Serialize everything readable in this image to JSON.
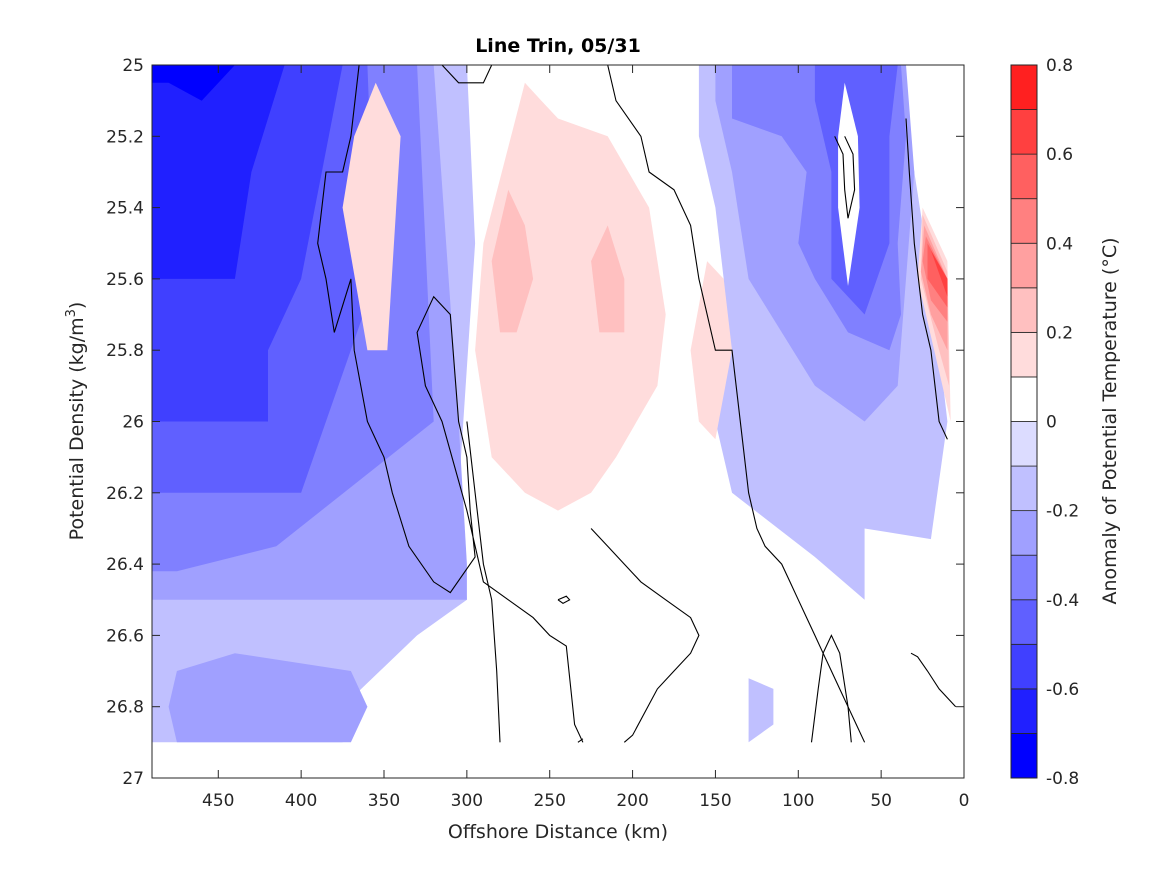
{
  "chart_data": {
    "type": "heatmap",
    "title": "Line Trin, 05/31",
    "xlabel": "Offshore Distance (km)",
    "ylabel": "Potential Density (kg/m",
    "ylabel_sup": "3",
    "ylabel_close": ")",
    "xlim": [
      490,
      0
    ],
    "ylim": [
      25,
      27
    ],
    "x_reversed": true,
    "y_reversed": true,
    "xticks": [
      450,
      400,
      350,
      300,
      250,
      200,
      150,
      100,
      50,
      0
    ],
    "yticks": [
      25,
      25.2,
      25.4,
      25.6,
      25.8,
      26,
      26.2,
      26.4,
      26.6,
      26.8,
      27
    ],
    "grid": false,
    "colorbar": {
      "label": "Anomaly of Potential Temperature (°C)",
      "min": -0.8,
      "max": 0.8,
      "levels": [
        -0.8,
        -0.7,
        -0.6,
        -0.5,
        -0.4,
        -0.3,
        -0.2,
        -0.1,
        0,
        0.1,
        0.2,
        0.3,
        0.4,
        0.5,
        0.6,
        0.7,
        0.8
      ],
      "ticks": [
        0.8,
        0.6,
        0.4,
        0.2,
        0,
        -0.2,
        -0.4,
        -0.6,
        -0.8
      ],
      "colors": [
        "#0000ff",
        "#2020ff",
        "#4040ff",
        "#6060ff",
        "#8080ff",
        "#a0a0ff",
        "#c0c0ff",
        "#dcdcff",
        "#ffffff",
        "#ffdcdc",
        "#ffc0c0",
        "#ffa0a0",
        "#ff8080",
        "#ff6060",
        "#ff4040",
        "#ff2020"
      ]
    },
    "regions": [
      {
        "v": -0.2,
        "pts": [
          [
            490,
            25
          ],
          [
            300,
            25
          ],
          [
            295,
            25.5
          ],
          [
            305,
            26.2
          ],
          [
            300,
            26.5
          ],
          [
            330,
            26.6
          ],
          [
            375,
            26.8
          ],
          [
            375,
            26.9
          ],
          [
            490,
            26.9
          ]
        ]
      },
      {
        "v": -0.3,
        "pts": [
          [
            490,
            25
          ],
          [
            320,
            25
          ],
          [
            305,
            26
          ],
          [
            300,
            26.4
          ],
          [
            300,
            26.5
          ],
          [
            490,
            26.5
          ]
        ]
      },
      {
        "v": -0.4,
        "pts": [
          [
            490,
            25
          ],
          [
            330,
            25
          ],
          [
            320,
            26
          ],
          [
            415,
            26.35
          ],
          [
            475,
            26.42
          ],
          [
            490,
            26.42
          ]
        ]
      },
      {
        "v": -0.5,
        "pts": [
          [
            490,
            25
          ],
          [
            360,
            25
          ],
          [
            355,
            25.6
          ],
          [
            400,
            26.2
          ],
          [
            470,
            26.2
          ],
          [
            490,
            26.2
          ]
        ]
      },
      {
        "v": -0.6,
        "pts": [
          [
            490,
            25
          ],
          [
            375,
            25
          ],
          [
            400,
            25.6
          ],
          [
            420,
            25.8
          ],
          [
            420,
            26
          ],
          [
            470,
            26
          ],
          [
            490,
            26
          ]
        ]
      },
      {
        "v": -0.7,
        "pts": [
          [
            490,
            25
          ],
          [
            410,
            25
          ],
          [
            430,
            25.3
          ],
          [
            440,
            25.6
          ],
          [
            490,
            25.6
          ]
        ]
      },
      {
        "v": -0.8,
        "pts": [
          [
            490,
            25
          ],
          [
            440,
            25
          ],
          [
            460,
            25.1
          ],
          [
            480,
            25.05
          ],
          [
            490,
            25.05
          ]
        ]
      },
      {
        "v": -0.3,
        "pts": [
          [
            475,
            26.7
          ],
          [
            440,
            26.65
          ],
          [
            370,
            26.7
          ],
          [
            360,
            26.8
          ],
          [
            370,
            26.9
          ],
          [
            475,
            26.9
          ],
          [
            480,
            26.8
          ]
        ]
      },
      {
        "v": -0.2,
        "pts": [
          [
            130,
            26.72
          ],
          [
            115,
            26.75
          ],
          [
            115,
            26.85
          ],
          [
            130,
            26.9
          ],
          [
            130,
            26.72
          ]
        ]
      },
      {
        "v": -0.2,
        "pts": [
          [
            160,
            25
          ],
          [
            40,
            25
          ],
          [
            20,
            25.6
          ],
          [
            10,
            26
          ],
          [
            20,
            26.33
          ],
          [
            60,
            26.3
          ],
          [
            60,
            26.5
          ],
          [
            90,
            26.38
          ],
          [
            140,
            26.2
          ],
          [
            150,
            26
          ],
          [
            145,
            25.6
          ],
          [
            150,
            25.4
          ],
          [
            160,
            25.2
          ]
        ]
      },
      {
        "v": -0.3,
        "pts": [
          [
            150,
            25
          ],
          [
            35,
            25
          ],
          [
            30,
            25.3
          ],
          [
            35,
            25.6
          ],
          [
            40,
            25.9
          ],
          [
            60,
            26
          ],
          [
            90,
            25.9
          ],
          [
            130,
            25.6
          ],
          [
            140,
            25.3
          ],
          [
            150,
            25.1
          ]
        ]
      },
      {
        "v": -0.4,
        "pts": [
          [
            140,
            25
          ],
          [
            38,
            25
          ],
          [
            35,
            25.2
          ],
          [
            40,
            25.5
          ],
          [
            38,
            25.7
          ],
          [
            45,
            25.8
          ],
          [
            70,
            25.75
          ],
          [
            90,
            25.6
          ],
          [
            100,
            25.5
          ],
          [
            95,
            25.3
          ],
          [
            110,
            25.2
          ],
          [
            140,
            25.15
          ]
        ]
      },
      {
        "v": -0.5,
        "pts": [
          [
            90,
            25
          ],
          [
            40,
            25
          ],
          [
            45,
            25.2
          ],
          [
            45,
            25.5
          ],
          [
            60,
            25.7
          ],
          [
            80,
            25.6
          ],
          [
            80,
            25.3
          ],
          [
            90,
            25.1
          ]
        ]
      },
      {
        "v": 0,
        "pts": [
          [
            72,
            25.05
          ],
          [
            64,
            25.2
          ],
          [
            63,
            25.4
          ],
          [
            70,
            25.62
          ],
          [
            76,
            25.4
          ],
          [
            76,
            25.2
          ]
        ]
      },
      {
        "v": 0.1,
        "pts": [
          [
            355,
            25.05
          ],
          [
            340,
            25.2
          ],
          [
            348,
            25.8
          ],
          [
            360,
            25.8
          ],
          [
            375,
            25.4
          ],
          [
            368,
            25.2
          ]
        ]
      },
      {
        "v": 0.1,
        "pts": [
          [
            265,
            25.05
          ],
          [
            290,
            25.5
          ],
          [
            295,
            25.8
          ],
          [
            285,
            26.1
          ],
          [
            265,
            26.2
          ],
          [
            245,
            26.25
          ],
          [
            225,
            26.2
          ],
          [
            210,
            26.1
          ],
          [
            185,
            25.9
          ],
          [
            180,
            25.7
          ],
          [
            190,
            25.4
          ],
          [
            215,
            25.2
          ],
          [
            245,
            25.15
          ],
          [
            255,
            25.1
          ]
        ]
      },
      {
        "v": 0.1,
        "pts": [
          [
            155,
            25.55
          ],
          [
            165,
            25.8
          ],
          [
            160,
            26
          ],
          [
            150,
            26.05
          ],
          [
            140,
            25.8
          ],
          [
            145,
            25.6
          ]
        ]
      },
      {
        "v": 0.2,
        "pts": [
          [
            275,
            25.35
          ],
          [
            285,
            25.55
          ],
          [
            280,
            25.75
          ],
          [
            270,
            25.75
          ],
          [
            260,
            25.6
          ],
          [
            265,
            25.45
          ]
        ]
      },
      {
        "v": 0.2,
        "pts": [
          [
            215,
            25.45
          ],
          [
            225,
            25.55
          ],
          [
            220,
            25.75
          ],
          [
            205,
            25.75
          ],
          [
            205,
            25.6
          ]
        ]
      },
      {
        "v": 0.1,
        "pts": [
          [
            25,
            25.4
          ],
          [
            10,
            25.55
          ],
          [
            8,
            26
          ],
          [
            18,
            25.8
          ],
          [
            28,
            25.6
          ]
        ]
      },
      {
        "v": 0.2,
        "pts": [
          [
            25,
            25.42
          ],
          [
            10,
            25.58
          ],
          [
            9,
            25.9
          ],
          [
            15,
            25.8
          ],
          [
            26,
            25.6
          ]
        ]
      },
      {
        "v": 0.3,
        "pts": [
          [
            24,
            25.45
          ],
          [
            10,
            25.6
          ],
          [
            10,
            25.8
          ],
          [
            20,
            25.7
          ],
          [
            26,
            25.58
          ]
        ]
      },
      {
        "v": 0.4,
        "pts": [
          [
            23,
            25.48
          ],
          [
            10,
            25.6
          ],
          [
            10,
            25.72
          ],
          [
            20,
            25.66
          ],
          [
            25,
            25.55
          ]
        ]
      },
      {
        "v": 0.5,
        "pts": [
          [
            22,
            25.5
          ],
          [
            10,
            25.6
          ],
          [
            10,
            25.68
          ],
          [
            22,
            25.6
          ]
        ]
      },
      {
        "v": 0.6,
        "pts": [
          [
            20,
            25.52
          ],
          [
            10,
            25.6
          ],
          [
            10,
            25.65
          ]
        ]
      }
    ],
    "contours": [
      [
        [
          365,
          25
        ],
        [
          370,
          25.2
        ],
        [
          375,
          25.3
        ],
        [
          385,
          25.3
        ],
        [
          390,
          25.5
        ],
        [
          385,
          25.6
        ],
        [
          380,
          25.75
        ],
        [
          370,
          25.6
        ],
        [
          368,
          25.8
        ],
        [
          360,
          26
        ],
        [
          350,
          26.1
        ],
        [
          345,
          26.2
        ],
        [
          335,
          26.35
        ],
        [
          320,
          26.45
        ],
        [
          310,
          26.48
        ],
        [
          295,
          26.38
        ],
        [
          298,
          26.25
        ],
        [
          300,
          26.1
        ],
        [
          305,
          26
        ],
        [
          310,
          25.7
        ],
        [
          320,
          25.65
        ],
        [
          330,
          25.75
        ],
        [
          325,
          25.9
        ],
        [
          315,
          26
        ],
        [
          300,
          26.25
        ],
        [
          290,
          26.45
        ],
        [
          275,
          26.5
        ],
        [
          260,
          26.55
        ],
        [
          250,
          26.6
        ],
        [
          240,
          26.63
        ],
        [
          235,
          26.85
        ],
        [
          230,
          26.9
        ]
      ],
      [
        [
          315,
          25
        ],
        [
          305,
          25.05
        ],
        [
          300,
          25.05
        ],
        [
          290,
          25.05
        ],
        [
          285,
          25
        ]
      ],
      [
        [
          215,
          25
        ],
        [
          210,
          25.1
        ],
        [
          195,
          25.2
        ],
        [
          190,
          25.3
        ],
        [
          175,
          25.35
        ],
        [
          165,
          25.45
        ],
        [
          160,
          25.6
        ],
        [
          150,
          25.8
        ],
        [
          140,
          25.8
        ],
        [
          135,
          26
        ],
        [
          130,
          26.2
        ],
        [
          125,
          26.3
        ],
        [
          120,
          26.35
        ],
        [
          110,
          26.4
        ],
        [
          105,
          26.45
        ],
        [
          100,
          26.5
        ],
        [
          95,
          26.55
        ],
        [
          90,
          26.6
        ],
        [
          85,
          26.65
        ],
        [
          80,
          26.7
        ],
        [
          75,
          26.75
        ],
        [
          70,
          26.8
        ],
        [
          65,
          26.85
        ],
        [
          60,
          26.9
        ]
      ],
      [
        [
          280,
          26.9
        ],
        [
          282,
          26.7
        ],
        [
          285,
          26.5
        ],
        [
          290,
          26.4
        ],
        [
          295,
          26.2
        ],
        [
          300,
          26
        ]
      ],
      [
        [
          245,
          26.5
        ],
        [
          240,
          26.49
        ],
        [
          238,
          26.5
        ],
        [
          242,
          26.51
        ],
        [
          245,
          26.5
        ]
      ],
      [
        [
          233,
          26.9
        ],
        [
          230,
          26.89
        ]
      ],
      [
        [
          205,
          26.9
        ],
        [
          200,
          26.88
        ],
        [
          185,
          26.75
        ],
        [
          175,
          26.7
        ],
        [
          165,
          26.65
        ],
        [
          160,
          26.6
        ],
        [
          165,
          26.55
        ],
        [
          180,
          26.5
        ],
        [
          195,
          26.45
        ],
        [
          205,
          26.4
        ],
        [
          215,
          26.35
        ],
        [
          225,
          26.3
        ]
      ],
      [
        [
          78,
          25.2
        ],
        [
          73,
          25.25
        ],
        [
          72,
          25.35
        ],
        [
          70,
          25.43
        ],
        [
          66,
          25.35
        ],
        [
          67,
          25.25
        ],
        [
          72,
          25.2
        ]
      ],
      [
        [
          92,
          26.9
        ],
        [
          88,
          26.75
        ],
        [
          85,
          26.65
        ],
        [
          80,
          26.6
        ],
        [
          75,
          26.65
        ],
        [
          70,
          26.8
        ],
        [
          68,
          26.9
        ]
      ],
      [
        [
          32,
          26.65
        ],
        [
          28,
          26.66
        ],
        [
          22,
          26.7
        ],
        [
          15,
          26.75
        ],
        [
          5,
          26.8
        ]
      ],
      [
        [
          35,
          25.15
        ],
        [
          33,
          25.3
        ],
        [
          30,
          25.5
        ],
        [
          25,
          25.7
        ],
        [
          20,
          25.8
        ],
        [
          15,
          26
        ],
        [
          10,
          26.05
        ]
      ]
    ]
  }
}
